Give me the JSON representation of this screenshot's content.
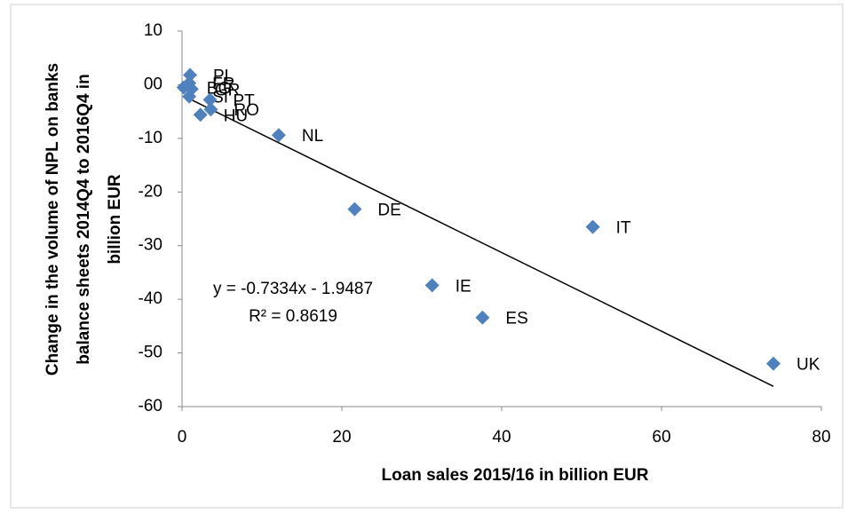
{
  "chart_data": {
    "type": "scatter",
    "xlabel": "Loan sales 2015/16 in billion EUR",
    "ylabel": [
      "Change in the volume of NPL on banks",
      "balance sheets 2014Q4 to 2016Q4  in",
      "billion EUR"
    ],
    "series": [
      {
        "color": "#4f81bd",
        "labels": [
          "PL",
          "FR",
          "GR",
          "BG",
          "SI",
          "PT",
          "RO",
          "HU",
          "NL",
          "DE",
          "IT",
          "IE",
          "ES",
          "UK"
        ],
        "x": [
          1.0,
          0.9,
          1.2,
          0.2,
          0.9,
          3.5,
          3.6,
          2.3,
          12.1,
          21.6,
          51.4,
          31.3,
          37.6,
          74.0
        ],
        "values": [
          1.8,
          0.3,
          -0.8,
          -0.5,
          -2.2,
          -2.8,
          -4.6,
          -5.6,
          -9.4,
          -23.2,
          -26.5,
          -37.4,
          -43.4,
          -52.0
        ]
      }
    ],
    "trendline": {
      "slope": -0.7334,
      "intercept": -1.9487,
      "equation": "y = -0.7334x - 1.9487",
      "r_squared": "R² = 0.8619"
    },
    "xlim": [
      0,
      80
    ],
    "xticks": [
      0,
      20,
      40,
      60,
      80
    ],
    "ylim": [
      -60,
      10
    ],
    "yticks": [
      10,
      {
        "value": 0,
        "label": "00"
      },
      -10,
      -20,
      -30,
      -40,
      -50,
      -60
    ]
  }
}
